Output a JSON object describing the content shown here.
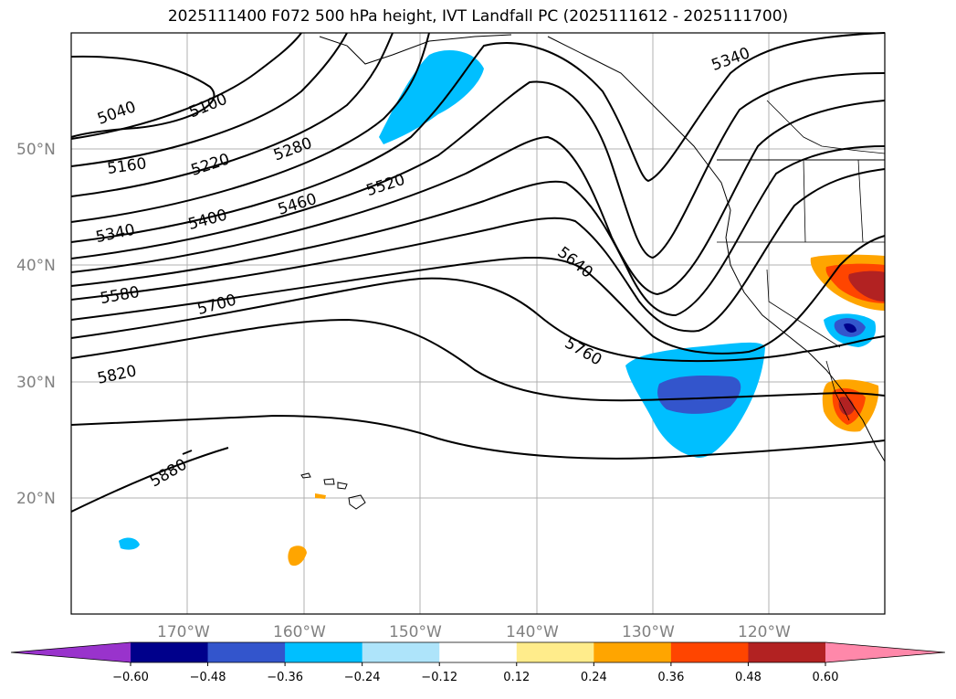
{
  "title": "2025111400 F072 500 hPa height, IVT Landfall PC (2025111612 - 2025111700)",
  "map": {
    "lon_range": [
      -180,
      -110
    ],
    "lat_range": [
      10,
      60
    ],
    "lat_ticks": [
      "20°N",
      "30°N",
      "40°N",
      "50°N"
    ],
    "lon_ticks": [
      "170°W",
      "160°W",
      "150°W",
      "140°W",
      "130°W",
      "120°W"
    ],
    "gridlines": true
  },
  "contours": {
    "variable": "500 hPa height",
    "labels": [
      "5040",
      "5100",
      "5160",
      "5220",
      "5280",
      "5340",
      "5400",
      "5460",
      "5520",
      "5580",
      "5640",
      "5700",
      "5760",
      "5820",
      "5880",
      "5340"
    ]
  },
  "colorbar": {
    "ticks": [
      "−0.60",
      "−0.48",
      "−0.36",
      "−0.24",
      "−0.12",
      "0.12",
      "0.24",
      "0.36",
      "0.48",
      "0.60"
    ],
    "colors": [
      "#9933cc",
      "#00008b",
      "#3355cc",
      "#00bfff",
      "#aee4fa",
      "#ffffff",
      "#ffec8b",
      "#ffa500",
      "#ff4500",
      "#b22222",
      "#ff88aa"
    ]
  }
}
